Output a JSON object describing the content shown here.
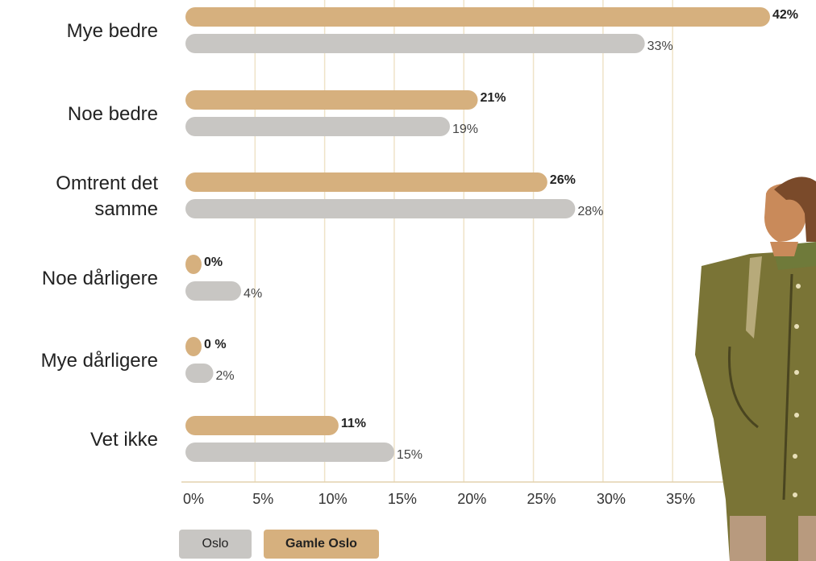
{
  "chart_data": {
    "type": "bar",
    "orientation": "horizontal",
    "categories": [
      "Mye bedre",
      "Noe bedre",
      "Omtrent det\nsamme",
      "Noe dårligere",
      "Mye dårligere",
      "Vet ikke"
    ],
    "series": [
      {
        "name": "Gamle Oslo",
        "color": "#d6b07e",
        "values": [
          42,
          21,
          26,
          0,
          0,
          11
        ],
        "value_labels": [
          "42%",
          "21%",
          "26%",
          "0%",
          "0 %",
          "11%"
        ]
      },
      {
        "name": "Oslo",
        "color": "#c8c6c3",
        "values": [
          33,
          19,
          28,
          4,
          2,
          15
        ],
        "value_labels": [
          "33%",
          "19%",
          "28%",
          "4%",
          "2%",
          "15%"
        ]
      }
    ],
    "xlim": [
      0,
      42
    ],
    "xticks": [
      {
        "value": 0,
        "label": "0%"
      },
      {
        "value": 5,
        "label": "5%"
      },
      {
        "value": 10,
        "label": "10%"
      },
      {
        "value": 15,
        "label": "15%"
      },
      {
        "value": 20,
        "label": "20%"
      },
      {
        "value": 25,
        "label": "25%"
      },
      {
        "value": 30,
        "label": "30%"
      },
      {
        "value": 35,
        "label": "35%"
      }
    ],
    "grid": true
  }
}
